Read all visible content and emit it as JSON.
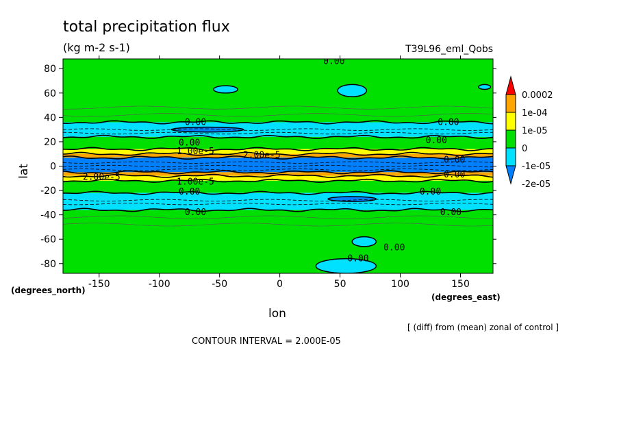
{
  "chart_data": {
    "type": "heatmap",
    "title": "total precipitation flux",
    "units": "(kg m-2 s-1)",
    "experiment": "T39L96_eml_Qobs",
    "xlabel": "lon",
    "ylabel": "lat",
    "x_unit_label": "(degrees_east)",
    "y_unit_label": "(degrees_north)",
    "xlim": [
      -180,
      177
    ],
    "ylim": [
      -88,
      88
    ],
    "x_ticks": [
      -150,
      -100,
      -50,
      0,
      50,
      100,
      150
    ],
    "x_tick_labels": [
      "-150",
      "-100",
      "-50",
      "0",
      "50",
      "100",
      "150"
    ],
    "y_ticks": [
      -80,
      -60,
      -40,
      -20,
      0,
      20,
      40,
      60,
      80
    ],
    "y_tick_labels": [
      "-80",
      "-60",
      "-40",
      "-20",
      "0",
      "20",
      "40",
      "60",
      "80"
    ],
    "colorbar": {
      "labels": [
        "0.0002",
        "1e-04",
        "1e-05",
        "0",
        "-1e-05",
        "-2e-05"
      ],
      "colors": [
        "#ff0000",
        "#ffa500",
        "#ffff00",
        "#00e000",
        "#00e0ff",
        "#0080ff"
      ]
    },
    "bands": [
      {
        "lat": [
          36,
          88
        ],
        "color": "#00e000"
      },
      {
        "lat": [
          24,
          36
        ],
        "color": "#00e0ff"
      },
      {
        "lat": [
          14,
          24
        ],
        "color": "#00e000"
      },
      {
        "lat": [
          10,
          14
        ],
        "color": "#ffff00"
      },
      {
        "lat": [
          7,
          10
        ],
        "color": "#ffa500"
      },
      {
        "lat": [
          -5,
          7
        ],
        "color": "#0080ff"
      },
      {
        "lat": [
          -8,
          -5
        ],
        "color": "#ffa500"
      },
      {
        "lat": [
          -12,
          -8
        ],
        "color": "#ffff00"
      },
      {
        "lat": [
          -22,
          -12
        ],
        "color": "#00e000"
      },
      {
        "lat": [
          -36,
          -22
        ],
        "color": "#00e0ff"
      },
      {
        "lat": [
          -88,
          -36
        ],
        "color": "#00e000"
      }
    ],
    "blobs": [
      {
        "lon": 60,
        "lat": 62,
        "rlon": 12,
        "rlat": 5,
        "color": "#00e0ff"
      },
      {
        "lon": -45,
        "lat": 63,
        "rlon": 10,
        "rlat": 3,
        "color": "#00e0ff"
      },
      {
        "lon": 170,
        "lat": 65,
        "rlon": 5,
        "rlat": 2,
        "color": "#00e0ff"
      },
      {
        "lon": 55,
        "lat": -82,
        "rlon": 25,
        "rlat": 6,
        "color": "#00e0ff"
      },
      {
        "lon": 70,
        "lat": -62,
        "rlon": 10,
        "rlat": 4,
        "color": "#00e0ff"
      },
      {
        "lon": -60,
        "lat": 30,
        "rlon": 30,
        "rlat": 2,
        "color": "#0080ff"
      },
      {
        "lon": 60,
        "lat": -27,
        "rlon": 20,
        "rlat": 2,
        "color": "#0080ff"
      }
    ],
    "contour_labels": [
      {
        "text": "0.00",
        "lon": 45,
        "lat": 86
      },
      {
        "text": "0.00",
        "lon": -70,
        "lat": 36
      },
      {
        "text": "0.00",
        "lon": 140,
        "lat": 36
      },
      {
        "text": "0.00",
        "lon": 130,
        "lat": 21
      },
      {
        "text": "0.00",
        "lon": -75,
        "lat": 19
      },
      {
        "text": "1.00e-5",
        "lon": -70,
        "lat": 12
      },
      {
        "text": "2.00e-5",
        "lon": -15,
        "lat": 9
      },
      {
        "text": "2.00e-5",
        "lon": -148,
        "lat": -9
      },
      {
        "text": "1.00e-5",
        "lon": -70,
        "lat": -13
      },
      {
        "text": "0.00",
        "lon": 145,
        "lat": 5
      },
      {
        "text": "0.00",
        "lon": 145,
        "lat": -7
      },
      {
        "text": "0.00",
        "lon": -75,
        "lat": -21
      },
      {
        "text": "0.00",
        "lon": 125,
        "lat": -21
      },
      {
        "text": "0.00",
        "lon": -70,
        "lat": -38
      },
      {
        "text": "0.00",
        "lon": 142,
        "lat": -38
      },
      {
        "text": "0.00",
        "lon": 95,
        "lat": -67
      },
      {
        "text": "0.00",
        "lon": 65,
        "lat": -76
      }
    ]
  },
  "footer": {
    "note": "[ (diff) from (mean) zonal of control ]",
    "contour_interval": "CONTOUR INTERVAL = 2.000E-05"
  }
}
